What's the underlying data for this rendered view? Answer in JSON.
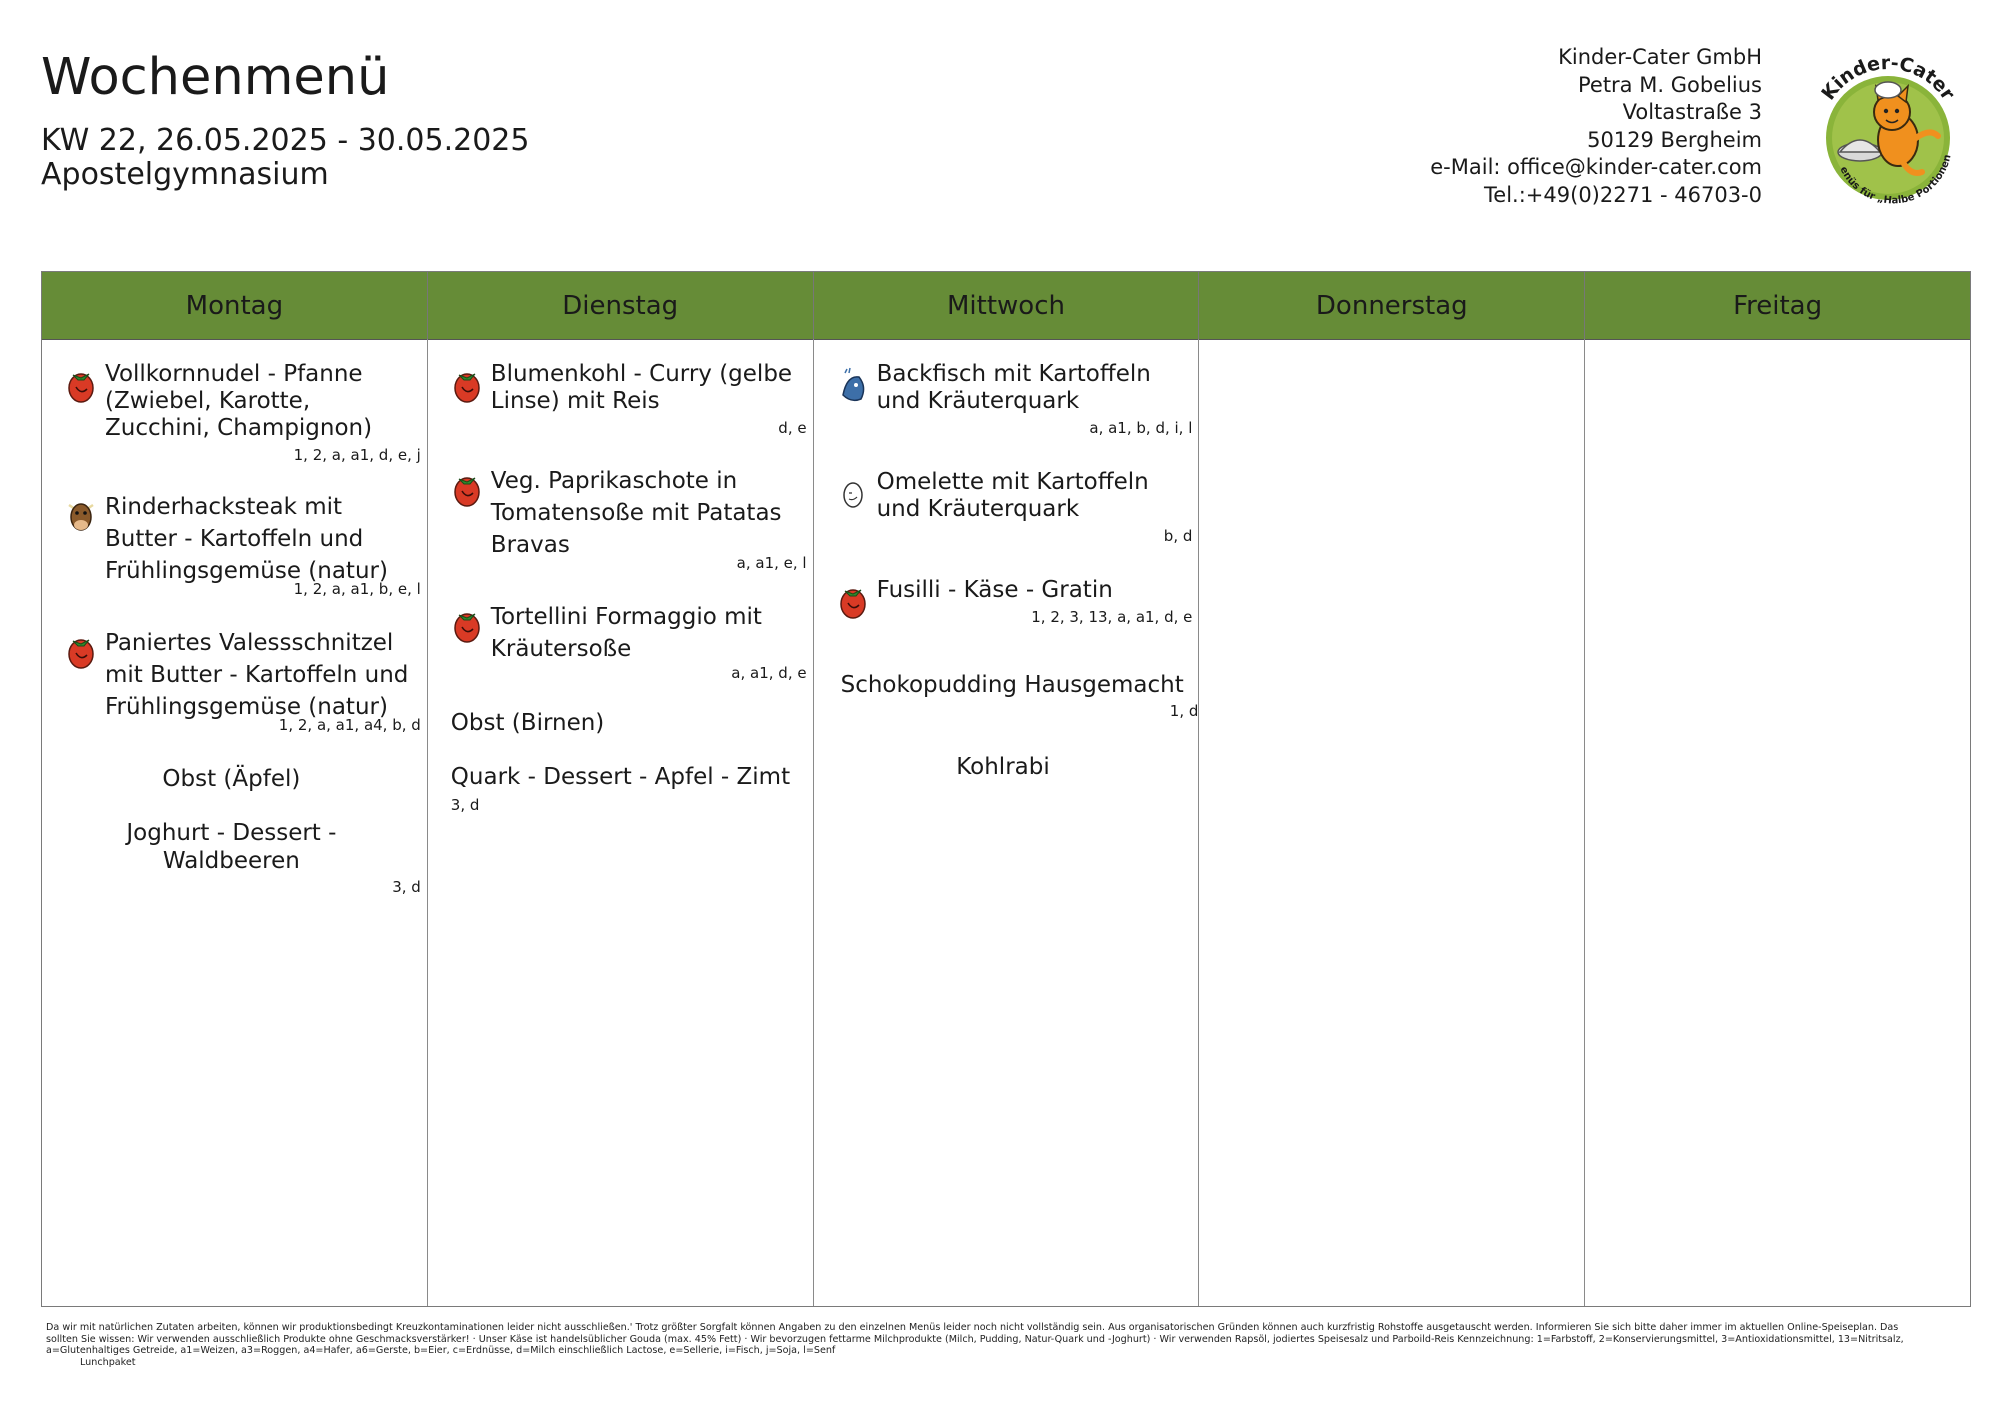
{
  "header": {
    "title": "Wochenmenü",
    "week": "KW 22, 26.05.2025 - 30.05.2025",
    "school": "Apostelgymnasium"
  },
  "company": {
    "name": "Kinder-Cater GmbH",
    "person": "Petra M. Gobelius",
    "street": "Voltastraße 3",
    "city": "50129 Bergheim",
    "email": "e-Mail: office@kinder-cater.com",
    "phone": "Tel.:+49(0)2271 - 46703-0"
  },
  "logo": {
    "arc_text": "Kinder-Cater",
    "bottom_text": "Menüs für „Halbe Portionen“",
    "colors": {
      "disc": "#8ab43a",
      "cat": "#f0901e",
      "text": "#1a1a1a"
    }
  },
  "days": [
    "Montag",
    "Dienstag",
    "Mittwoch",
    "Donnerstag",
    "Freitag"
  ],
  "menu": {
    "montag": {
      "dish1": {
        "name": "Vollkornnudel - Pfanne (Zwiebel, Karotte, Zucchini, Champignon)",
        "codes": "1, 2, a, a1, d, e, j",
        "icon": "tomato-icon"
      },
      "dish2": {
        "name": "Rinderhacksteak mit Butter - Kartoffeln und Frühlingsgemüse (natur)",
        "codes": "1, 2, a, a1, b, e, l",
        "icon": "cow-icon"
      },
      "dish3": {
        "name": "Paniertes Valessschnitzel mit Butter - Kartoffeln und Frühlingsgemüse (natur)",
        "codes": "1, 2, a, a1, a4, b, d",
        "icon": "tomato-icon"
      },
      "extra1": {
        "name": "Obst (Äpfel)"
      },
      "extra2": {
        "name": "Joghurt - Dessert - Waldbeeren",
        "codes": "3, d"
      }
    },
    "dienstag": {
      "dish1": {
        "name": "Blumenkohl - Curry (gelbe Linse) mit Reis",
        "codes": "d, e",
        "icon": "tomato-icon"
      },
      "dish2": {
        "name": "Veg. Paprikaschote in Tomatensoße mit Patatas Bravas",
        "codes": "a, a1, e, l",
        "icon": "tomato-icon"
      },
      "dish3": {
        "name": "Tortellini Formaggio mit Kräutersoße",
        "codes": "a, a1, d, e",
        "icon": "tomato-icon"
      },
      "extra1": {
        "name": "Obst (Birnen)"
      },
      "extra2": {
        "name": "Quark - Dessert - Apfel - Zimt",
        "codes": "3, d"
      }
    },
    "mittwoch": {
      "dish1": {
        "name": "Backfisch mit Kartoffeln und Kräuterquark",
        "codes": "a, a1, b, d, i, l",
        "icon": "fish-icon"
      },
      "dish2": {
        "name": "Omelette mit Kartoffeln und Kräuterquark",
        "codes": "b, d",
        "icon": "egg-icon"
      },
      "dish3": {
        "name": "Fusilli - Käse - Gratin",
        "codes": "1, 2, 3, 13, a, a1, d, e",
        "icon": "tomato-icon"
      },
      "extra1": {
        "name": "Schokopudding Hausgemacht",
        "codes": "1, d"
      },
      "extra2": {
        "name": "Kohlrabi"
      }
    }
  },
  "footer": {
    "notice": "Da wir mit natürlichen Zutaten arbeiten, können wir produktionsbedingt Kreuzkontaminationen leider nicht ausschließen.' Trotz größter Sorgfalt können Angaben zu den einzelnen Menüs leider noch nicht vollständig sein. Aus organisatorischen Gründen können auch kurzfristig Rohstoffe ausgetauscht werden. Informieren Sie sich bitte daher immer im aktuellen Online-Speiseplan. Das sollten Sie wissen: Wir verwenden ausschließlich Produkte ohne Geschmacksverstärker! · Unser Käse ist handelsüblicher Gouda (max. 45% Fett) · Wir bevorzugen fettarme Milchprodukte (Milch, Pudding, Natur-Quark und -Joghurt) · Wir verwenden Rapsöl, jodiertes Speisesalz und Parboild-Reis Kennzeichnung: 1=Farbstoff, 2=Konservierungsmittel, 3=Antioxidationsmittel, 13=Nitritsalz, a=Glutenhaltiges Getreide, a1=Weizen, a3=Roggen, a4=Hafer, a6=Gerste, b=Eier, c=Erdnüsse, d=Milch einschließlich Lactose, e=Sellerie, i=Fisch, j=Soja, l=Senf",
    "lunch": "Lunchpaket"
  }
}
